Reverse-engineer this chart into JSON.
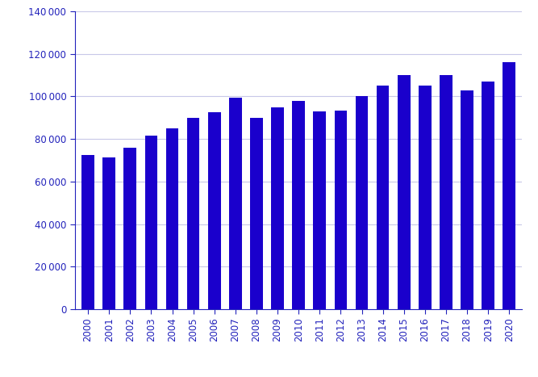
{
  "years": [
    2000,
    2001,
    2002,
    2003,
    2004,
    2005,
    2006,
    2007,
    2008,
    2009,
    2010,
    2011,
    2012,
    2013,
    2014,
    2015,
    2016,
    2017,
    2018,
    2019,
    2020
  ],
  "values": [
    72500,
    71500,
    76000,
    81500,
    85000,
    90000,
    92500,
    99500,
    90000,
    95000,
    98000,
    93000,
    93500,
    100000,
    105000,
    110000,
    105000,
    110000,
    103000,
    107000,
    116000
  ],
  "bar_color": "#1a00cc",
  "ylim": [
    0,
    140000
  ],
  "yticks": [
    0,
    20000,
    40000,
    60000,
    80000,
    100000,
    120000,
    140000
  ],
  "grid_color": "#c8c8e8",
  "tick_color": "#2222bb",
  "axis_color": "#2222bb",
  "background_color": "#ffffff",
  "bar_width": 0.6
}
